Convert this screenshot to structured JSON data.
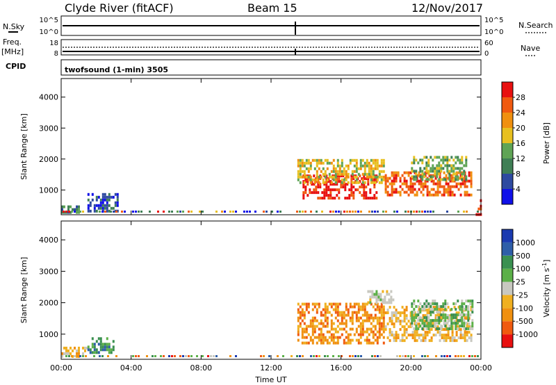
{
  "header": {
    "station": "Clyde River (fitACF)",
    "beam": "Beam 15",
    "date": "12/Nov/2017"
  },
  "status_panel": {
    "left_labels": {
      "nsky": "N.Sky",
      "freq": "Freq.",
      "freq_unit": "[MHz]",
      "cpid": "CPID"
    },
    "right_labels": {
      "nsearch": "N.Search",
      "nave": "Nave"
    },
    "left_ticks_top": [
      "10^5",
      "10^0"
    ],
    "right_ticks_top": [
      "10^5",
      "10^0"
    ],
    "left_ticks_mid": [
      "18",
      "8"
    ],
    "right_ticks_mid": [
      "60",
      "0"
    ],
    "cpid_text": "twofsound (1-min) 3505"
  },
  "colors": {
    "power_scale": [
      "#1010e8",
      "#2e4aa0",
      "#3f7f55",
      "#5fa455",
      "#e8c020",
      "#f09010",
      "#f05a10",
      "#e81010"
    ],
    "velocity_scale": [
      "#e81010",
      "#f05a10",
      "#f09010",
      "#f0b020",
      "#c8c8c0",
      "#5cb048",
      "#3a9050",
      "#2e5ea8",
      "#1a3ab0"
    ]
  },
  "chart_data": [
    {
      "type": "heatmap",
      "panel": "power",
      "ylabel": "Slant Range [km]",
      "yticks": [
        "1000",
        "2000",
        "3000",
        "4000"
      ],
      "ylim": [
        200,
        4600
      ],
      "xlim": [
        0,
        24
      ],
      "xticks": [
        "00:00",
        "04:00",
        "08:00",
        "12:00",
        "16:00",
        "20:00",
        "00:00"
      ],
      "colorbar": {
        "label": "Power [dB]",
        "ticks": [
          "4",
          "8",
          "12",
          "16",
          "20",
          "24",
          "28"
        ],
        "range": [
          0,
          32
        ]
      },
      "regions": [
        {
          "t": [
            0.0,
            1.0
          ],
          "r": [
            300,
            500
          ],
          "level": 2
        },
        {
          "t": [
            1.5,
            3.2
          ],
          "r": [
            300,
            900
          ],
          "level": 1
        },
        {
          "t": [
            13.8,
            18.0
          ],
          "r": [
            700,
            1500
          ],
          "level": 7
        },
        {
          "t": [
            13.5,
            18.5
          ],
          "r": [
            1200,
            2000
          ],
          "level": 4
        },
        {
          "t": [
            18.5,
            23.5
          ],
          "r": [
            800,
            1600
          ],
          "level": 6
        },
        {
          "t": [
            20.0,
            23.2
          ],
          "r": [
            1300,
            2100
          ],
          "level": 3
        },
        {
          "t": [
            23.7,
            24.0
          ],
          "r": [
            250,
            700
          ],
          "level": 7
        }
      ]
    },
    {
      "type": "heatmap",
      "panel": "velocity",
      "ylabel": "Slant Range [km]",
      "yticks": [
        "1000",
        "2000",
        "3000",
        "4000"
      ],
      "ylim": [
        200,
        4600
      ],
      "xlim": [
        0,
        24
      ],
      "xticks": [
        "00:00",
        "04:00",
        "08:00",
        "12:00",
        "16:00",
        "20:00",
        "00:00"
      ],
      "xlabel": "Time UT",
      "colorbar": {
        "label": "Velocity [m s",
        "label_sup": "-1",
        "label_end": "]",
        "ticks": [
          "1000",
          "500",
          "100",
          "25",
          "-25",
          "-100",
          "-500",
          "-1000"
        ]
      },
      "regions": [
        {
          "t": [
            0.0,
            1.5
          ],
          "r": [
            300,
            600
          ],
          "level": 3
        },
        {
          "t": [
            1.5,
            3.0
          ],
          "r": [
            400,
            900
          ],
          "level": 6
        },
        {
          "t": [
            13.5,
            18.5
          ],
          "r": [
            700,
            2000
          ],
          "level": 2
        },
        {
          "t": [
            18.5,
            23.5
          ],
          "r": [
            800,
            1900
          ],
          "level": 3
        },
        {
          "t": [
            20.0,
            23.5
          ],
          "r": [
            1200,
            2100
          ],
          "level": 5
        },
        {
          "t": [
            17.5,
            19.0
          ],
          "r": [
            2000,
            2400
          ],
          "level": 4
        }
      ]
    }
  ]
}
